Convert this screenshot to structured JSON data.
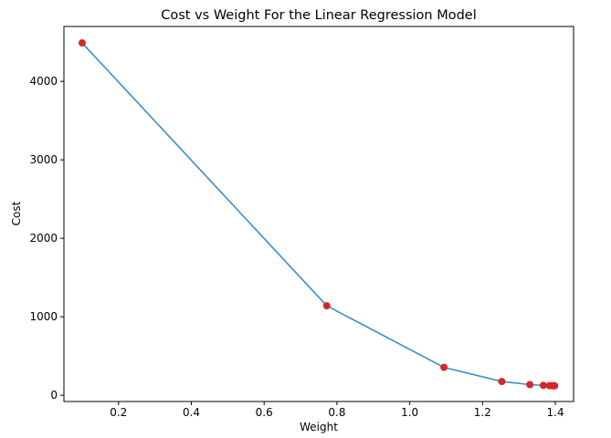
{
  "chart_data": {
    "type": "line",
    "title": "Cost vs Weight For the Linear Regression Model",
    "xlabel": "Weight",
    "ylabel": "Cost",
    "xlim": [
      0.05,
      1.45
    ],
    "ylim": [
      -80,
      4700
    ],
    "xticks": [
      0.2,
      0.4,
      0.6,
      0.8,
      1.0,
      1.2,
      1.4
    ],
    "xtick_labels": [
      "0.2",
      "0.4",
      "0.6",
      "0.8",
      "1.0",
      "1.2",
      "1.4"
    ],
    "yticks": [
      0,
      1000,
      2000,
      3000,
      4000
    ],
    "ytick_labels": [
      "0",
      "1000",
      "2000",
      "3000",
      "4000"
    ],
    "grid": false,
    "series": [
      {
        "name": "cost",
        "line_color": "#3a8fc7",
        "marker_color": "#d62728",
        "x": [
          0.1,
          0.772,
          1.094,
          1.253,
          1.33,
          1.367,
          1.384,
          1.392,
          1.396,
          1.398
        ],
        "y": [
          4490,
          1140,
          355,
          175,
          135,
          125,
          122,
          121,
          120,
          120
        ]
      }
    ]
  }
}
